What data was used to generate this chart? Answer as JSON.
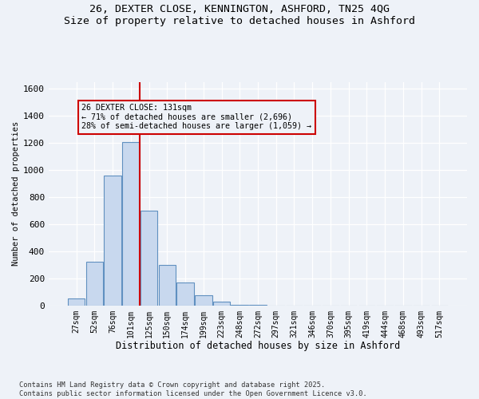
{
  "title_line1": "26, DEXTER CLOSE, KENNINGTON, ASHFORD, TN25 4QG",
  "title_line2": "Size of property relative to detached houses in Ashford",
  "xlabel": "Distribution of detached houses by size in Ashford",
  "ylabel": "Number of detached properties",
  "footnote": "Contains HM Land Registry data © Crown copyright and database right 2025.\nContains public sector information licensed under the Open Government Licence v3.0.",
  "bar_color": "#c8d8ee",
  "bar_edge_color": "#6090c0",
  "bin_labels": [
    "27sqm",
    "52sqm",
    "76sqm",
    "101sqm",
    "125sqm",
    "150sqm",
    "174sqm",
    "199sqm",
    "223sqm",
    "248sqm",
    "272sqm",
    "297sqm",
    "321sqm",
    "346sqm",
    "370sqm",
    "395sqm",
    "419sqm",
    "444sqm",
    "468sqm",
    "493sqm",
    "517sqm"
  ],
  "bar_values": [
    50,
    320,
    960,
    1210,
    700,
    300,
    170,
    75,
    30,
    5,
    2,
    1,
    1,
    0,
    0,
    0,
    0,
    0,
    0,
    0,
    0
  ],
  "ylim": [
    0,
    1650
  ],
  "yticks": [
    0,
    200,
    400,
    600,
    800,
    1000,
    1200,
    1400,
    1600
  ],
  "property_bin_index": 4,
  "vline_color": "#cc0000",
  "annotation_title": "26 DEXTER CLOSE: 131sqm",
  "annotation_line1": "← 71% of detached houses are smaller (2,696)",
  "annotation_line2": "28% of semi-detached houses are larger (1,059) →",
  "annotation_box_color": "#cc0000",
  "background_color": "#eef2f8",
  "grid_color": "#ffffff"
}
